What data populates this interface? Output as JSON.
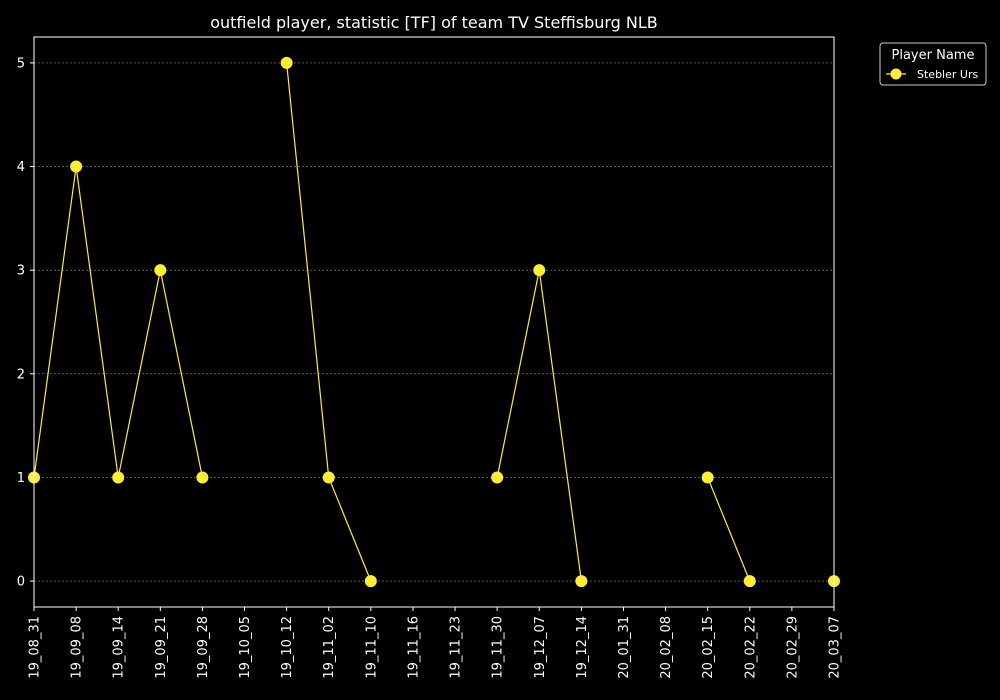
{
  "chart_data": {
    "type": "line",
    "title": "outfield player, statistic [TF] of team TV Steffisburg NLB",
    "xlabel": "",
    "ylabel": "",
    "categories": [
      "19_08_31",
      "19_09_08",
      "19_09_14",
      "19_09_21",
      "19_09_28",
      "19_10_05",
      "19_10_12",
      "19_11_02",
      "19_11_10",
      "19_11_16",
      "19_11_23",
      "19_11_30",
      "19_12_07",
      "19_12_14",
      "20_01_31",
      "20_02_08",
      "20_02_15",
      "20_02_22",
      "20_02_29",
      "20_03_07"
    ],
    "series": [
      {
        "name": "Stebler Urs",
        "color": "#ffee33",
        "values": [
          1,
          4,
          1,
          3,
          1,
          null,
          5,
          1,
          0,
          null,
          null,
          1,
          3,
          0,
          null,
          null,
          1,
          0,
          null,
          0
        ]
      }
    ],
    "yticks": [
      0,
      1,
      2,
      3,
      4,
      5
    ],
    "ylim": [
      -0.25,
      5.25
    ],
    "grid": true,
    "legend": {
      "title": "Player Name",
      "placement": "outside-top-right"
    },
    "colors": {
      "background": "#000000",
      "axis": "#ffffff",
      "grid": "#888888"
    }
  }
}
